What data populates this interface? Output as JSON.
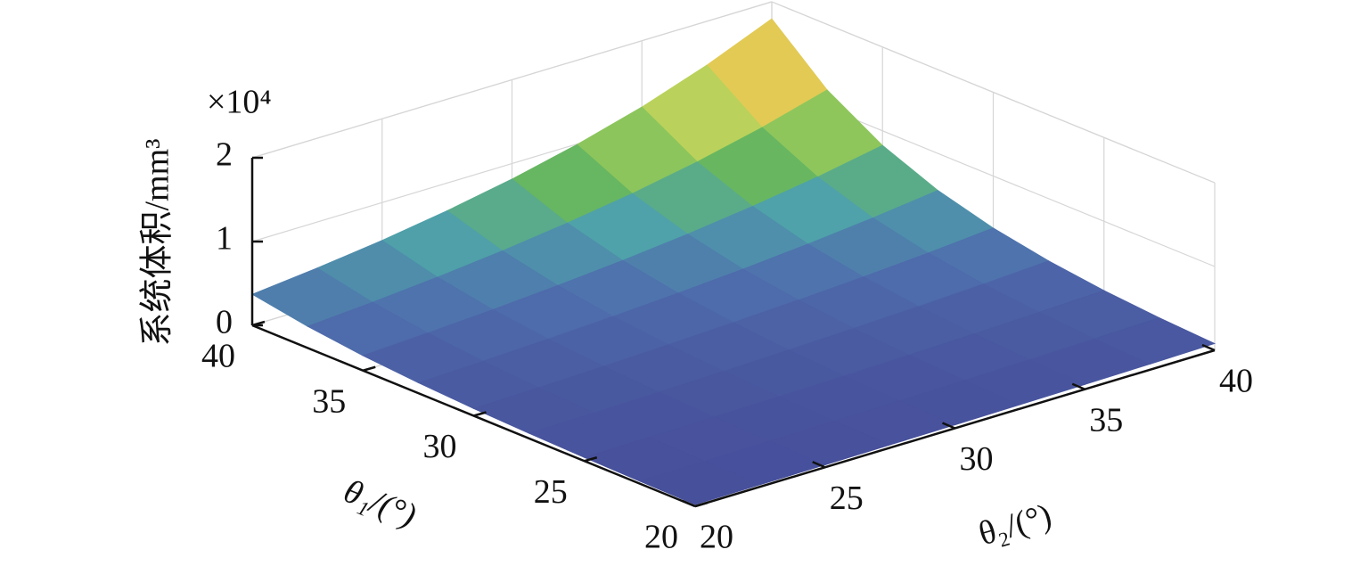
{
  "chart_data": {
    "type": "surface",
    "x_label": "θ₂/(°)",
    "y_label": "θ₁/(°)",
    "z_label": "系统体积/mm³",
    "z_multiplier": "×10⁴",
    "x": [
      20,
      22.5,
      25,
      27.5,
      30,
      32.5,
      35,
      37.5,
      40
    ],
    "y": [
      20,
      22.5,
      25,
      27.5,
      30,
      32.5,
      35,
      37.5,
      40
    ],
    "z": [
      [
        0.02,
        0.024,
        0.028,
        0.034,
        0.04,
        0.048,
        0.057,
        0.067,
        0.08
      ],
      [
        0.029,
        0.034,
        0.041,
        0.049,
        0.058,
        0.069,
        0.083,
        0.099,
        0.118
      ],
      [
        0.042,
        0.05,
        0.059,
        0.071,
        0.085,
        0.102,
        0.122,
        0.147,
        0.174
      ],
      [
        0.06,
        0.072,
        0.086,
        0.103,
        0.124,
        0.149,
        0.178,
        0.214,
        0.257
      ],
      [
        0.086,
        0.103,
        0.125,
        0.15,
        0.181,
        0.218,
        0.261,
        0.315,
        0.379
      ],
      [
        0.124,
        0.149,
        0.18,
        0.218,
        0.264,
        0.317,
        0.384,
        0.463,
        0.559
      ],
      [
        0.178,
        0.216,
        0.261,
        0.317,
        0.384,
        0.465,
        0.564,
        0.682,
        0.826
      ],
      [
        0.257,
        0.312,
        0.379,
        0.461,
        0.56,
        0.679,
        0.825,
        1.003,
        1.218
      ],
      [
        0.37,
        0.451,
        0.549,
        0.669,
        0.815,
        0.994,
        1.21,
        1.477,
        1.798
      ]
    ],
    "xlim": [
      20,
      40
    ],
    "ylim": [
      20,
      40
    ],
    "zlim": [
      0,
      2
    ],
    "xticks": [
      20,
      25,
      30,
      35,
      40
    ],
    "yticks": [
      20,
      25,
      30,
      35,
      40
    ],
    "zticks": [
      0,
      1,
      2
    ],
    "grid": true,
    "colormap": [
      "#474f9b",
      "#4f6fad",
      "#4fa3a9",
      "#69b85c",
      "#a7cf5c",
      "#dcd85a",
      "#efad4c",
      "#d84a4d"
    ]
  }
}
